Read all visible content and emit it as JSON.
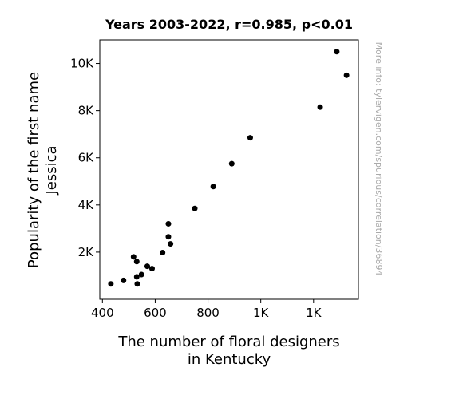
{
  "chart_data": {
    "type": "scatter",
    "title": "Years 2003-2022, r=0.985, p<0.01",
    "xlabel_lines": [
      "The number of floral designers",
      "in Kentucky"
    ],
    "ylabel_lines": [
      "Popularity of the first name",
      "Jessica"
    ],
    "side_note": "More info: tylervigen.com/spurious/correlation/36894",
    "x_ticks": [
      {
        "value": 400,
        "label": "400"
      },
      {
        "value": 600,
        "label": "600"
      },
      {
        "value": 800,
        "label": "800"
      },
      {
        "value": 1000,
        "label": "1K"
      },
      {
        "value": 1200,
        "label": "1K"
      }
    ],
    "y_ticks": [
      {
        "value": 2000,
        "label": "2K"
      },
      {
        "value": 4000,
        "label": "4K"
      },
      {
        "value": 6000,
        "label": "6K"
      },
      {
        "value": 8000,
        "label": "8K"
      },
      {
        "value": 10000,
        "label": "10K"
      }
    ],
    "xlim": [
      390,
      1370
    ],
    "ylim": [
      0,
      11000
    ],
    "point_color": "#000000",
    "points": [
      {
        "x": 432,
        "y": 650
      },
      {
        "x": 480,
        "y": 800
      },
      {
        "x": 518,
        "y": 1800
      },
      {
        "x": 530,
        "y": 950
      },
      {
        "x": 530,
        "y": 1600
      },
      {
        "x": 532,
        "y": 650
      },
      {
        "x": 548,
        "y": 1050
      },
      {
        "x": 570,
        "y": 1400
      },
      {
        "x": 588,
        "y": 1300
      },
      {
        "x": 628,
        "y": 1980
      },
      {
        "x": 650,
        "y": 3200
      },
      {
        "x": 650,
        "y": 2650
      },
      {
        "x": 658,
        "y": 2350
      },
      {
        "x": 750,
        "y": 3850
      },
      {
        "x": 820,
        "y": 4780
      },
      {
        "x": 890,
        "y": 5750
      },
      {
        "x": 960,
        "y": 6850
      },
      {
        "x": 1225,
        "y": 8150
      },
      {
        "x": 1288,
        "y": 10500
      },
      {
        "x": 1325,
        "y": 9500
      }
    ]
  }
}
